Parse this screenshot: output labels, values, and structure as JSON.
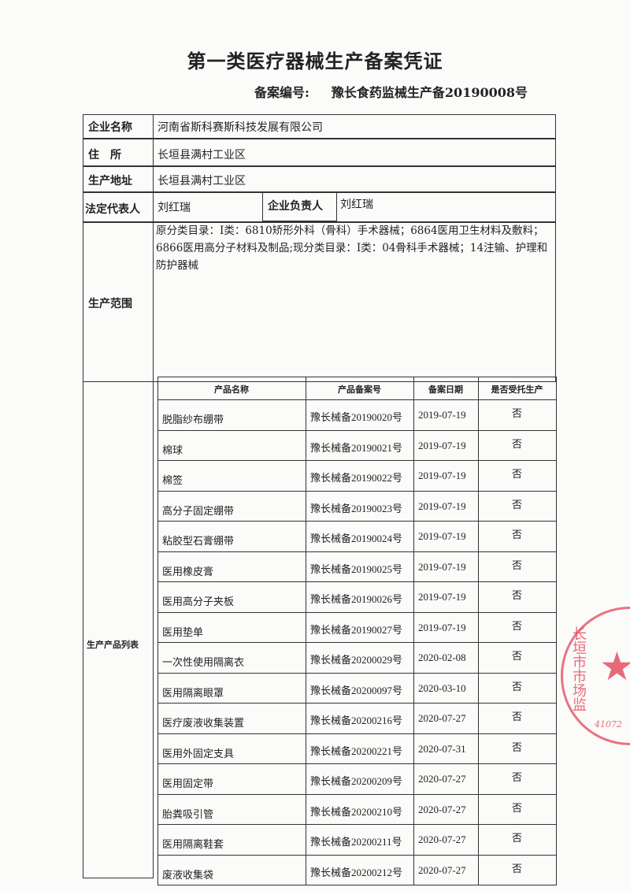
{
  "title": "第一类医疗器械生产备案凭证",
  "record_number_label": "备案编号:",
  "record_number": "豫长食药监械生产备20190008号",
  "company_name_label": "企业名称",
  "company_name": "河南省斯科赛斯科技发展有限公司",
  "residence_label": "住　所",
  "residence": "长垣县满村工业区",
  "production_address_label": "生产地址",
  "production_address": "长垣县满村工业区",
  "legal_rep_label": "法定代表人",
  "legal_rep": "刘红瑞",
  "company_head_label": "企业负责人",
  "company_head": "刘红瑞",
  "scope_label": "生产范围",
  "scope": "原分类目录：Ⅰ类：6810矫形外科（骨科）手术器械；6864医用卫生材料及敷料；6866医用高分子材料及制品;现分类目录：Ⅰ类：04骨科手术器械；14注输、护理和防护器械",
  "product_list_label": "生产产品列表",
  "product_headers": [
    "产品名称",
    "产品备案号",
    "备案日期",
    "是否受托生产"
  ],
  "products": [
    [
      "脱脂纱布绷带",
      "豫长械备20190020号",
      "2019-07-19",
      "否"
    ],
    [
      "棉球",
      "豫长械备20190021号",
      "2019-07-19",
      "否"
    ],
    [
      "棉签",
      "豫长械备20190022号",
      "2019-07-19",
      "否"
    ],
    [
      "高分子固定绷带",
      "豫长械备20190023号",
      "2019-07-19",
      "否"
    ],
    [
      "粘胶型石膏绷带",
      "豫长械备20190024号",
      "2019-07-19",
      "否"
    ],
    [
      "医用橡皮膏",
      "豫长械备20190025号",
      "2019-07-19",
      "否"
    ],
    [
      "医用高分子夹板",
      "豫长械备20190026号",
      "2019-07-19",
      "否"
    ],
    [
      "医用垫单",
      "豫长械备20190027号",
      "2019-07-19",
      "否"
    ],
    [
      "一次性使用隔离衣",
      "豫长械备20200029号",
      "2020-02-08",
      "否"
    ],
    [
      "医用隔离眼罩",
      "豫长械备20200097号",
      "2020-03-10",
      "否"
    ],
    [
      "医疗废液收集装置",
      "豫长械备20200216号",
      "2020-07-27",
      "否"
    ],
    [
      "医用外固定支具",
      "豫长械备20200221号",
      "2020-07-31",
      "否"
    ],
    [
      "医用固定带",
      "豫长械备20200209号",
      "2020-07-27",
      "否"
    ],
    [
      "胎粪吸引管",
      "豫长械备20200210号",
      "2020-07-27",
      "否"
    ],
    [
      "医用隔离鞋套",
      "豫长械备20200211号",
      "2020-07-27",
      "否"
    ],
    [
      "废液收集袋",
      "豫长械备20200212号",
      "2020-07-27",
      "否"
    ]
  ],
  "seal": {
    "text": "长垣市市场监",
    "code": "41072",
    "color": "#e1465a"
  }
}
